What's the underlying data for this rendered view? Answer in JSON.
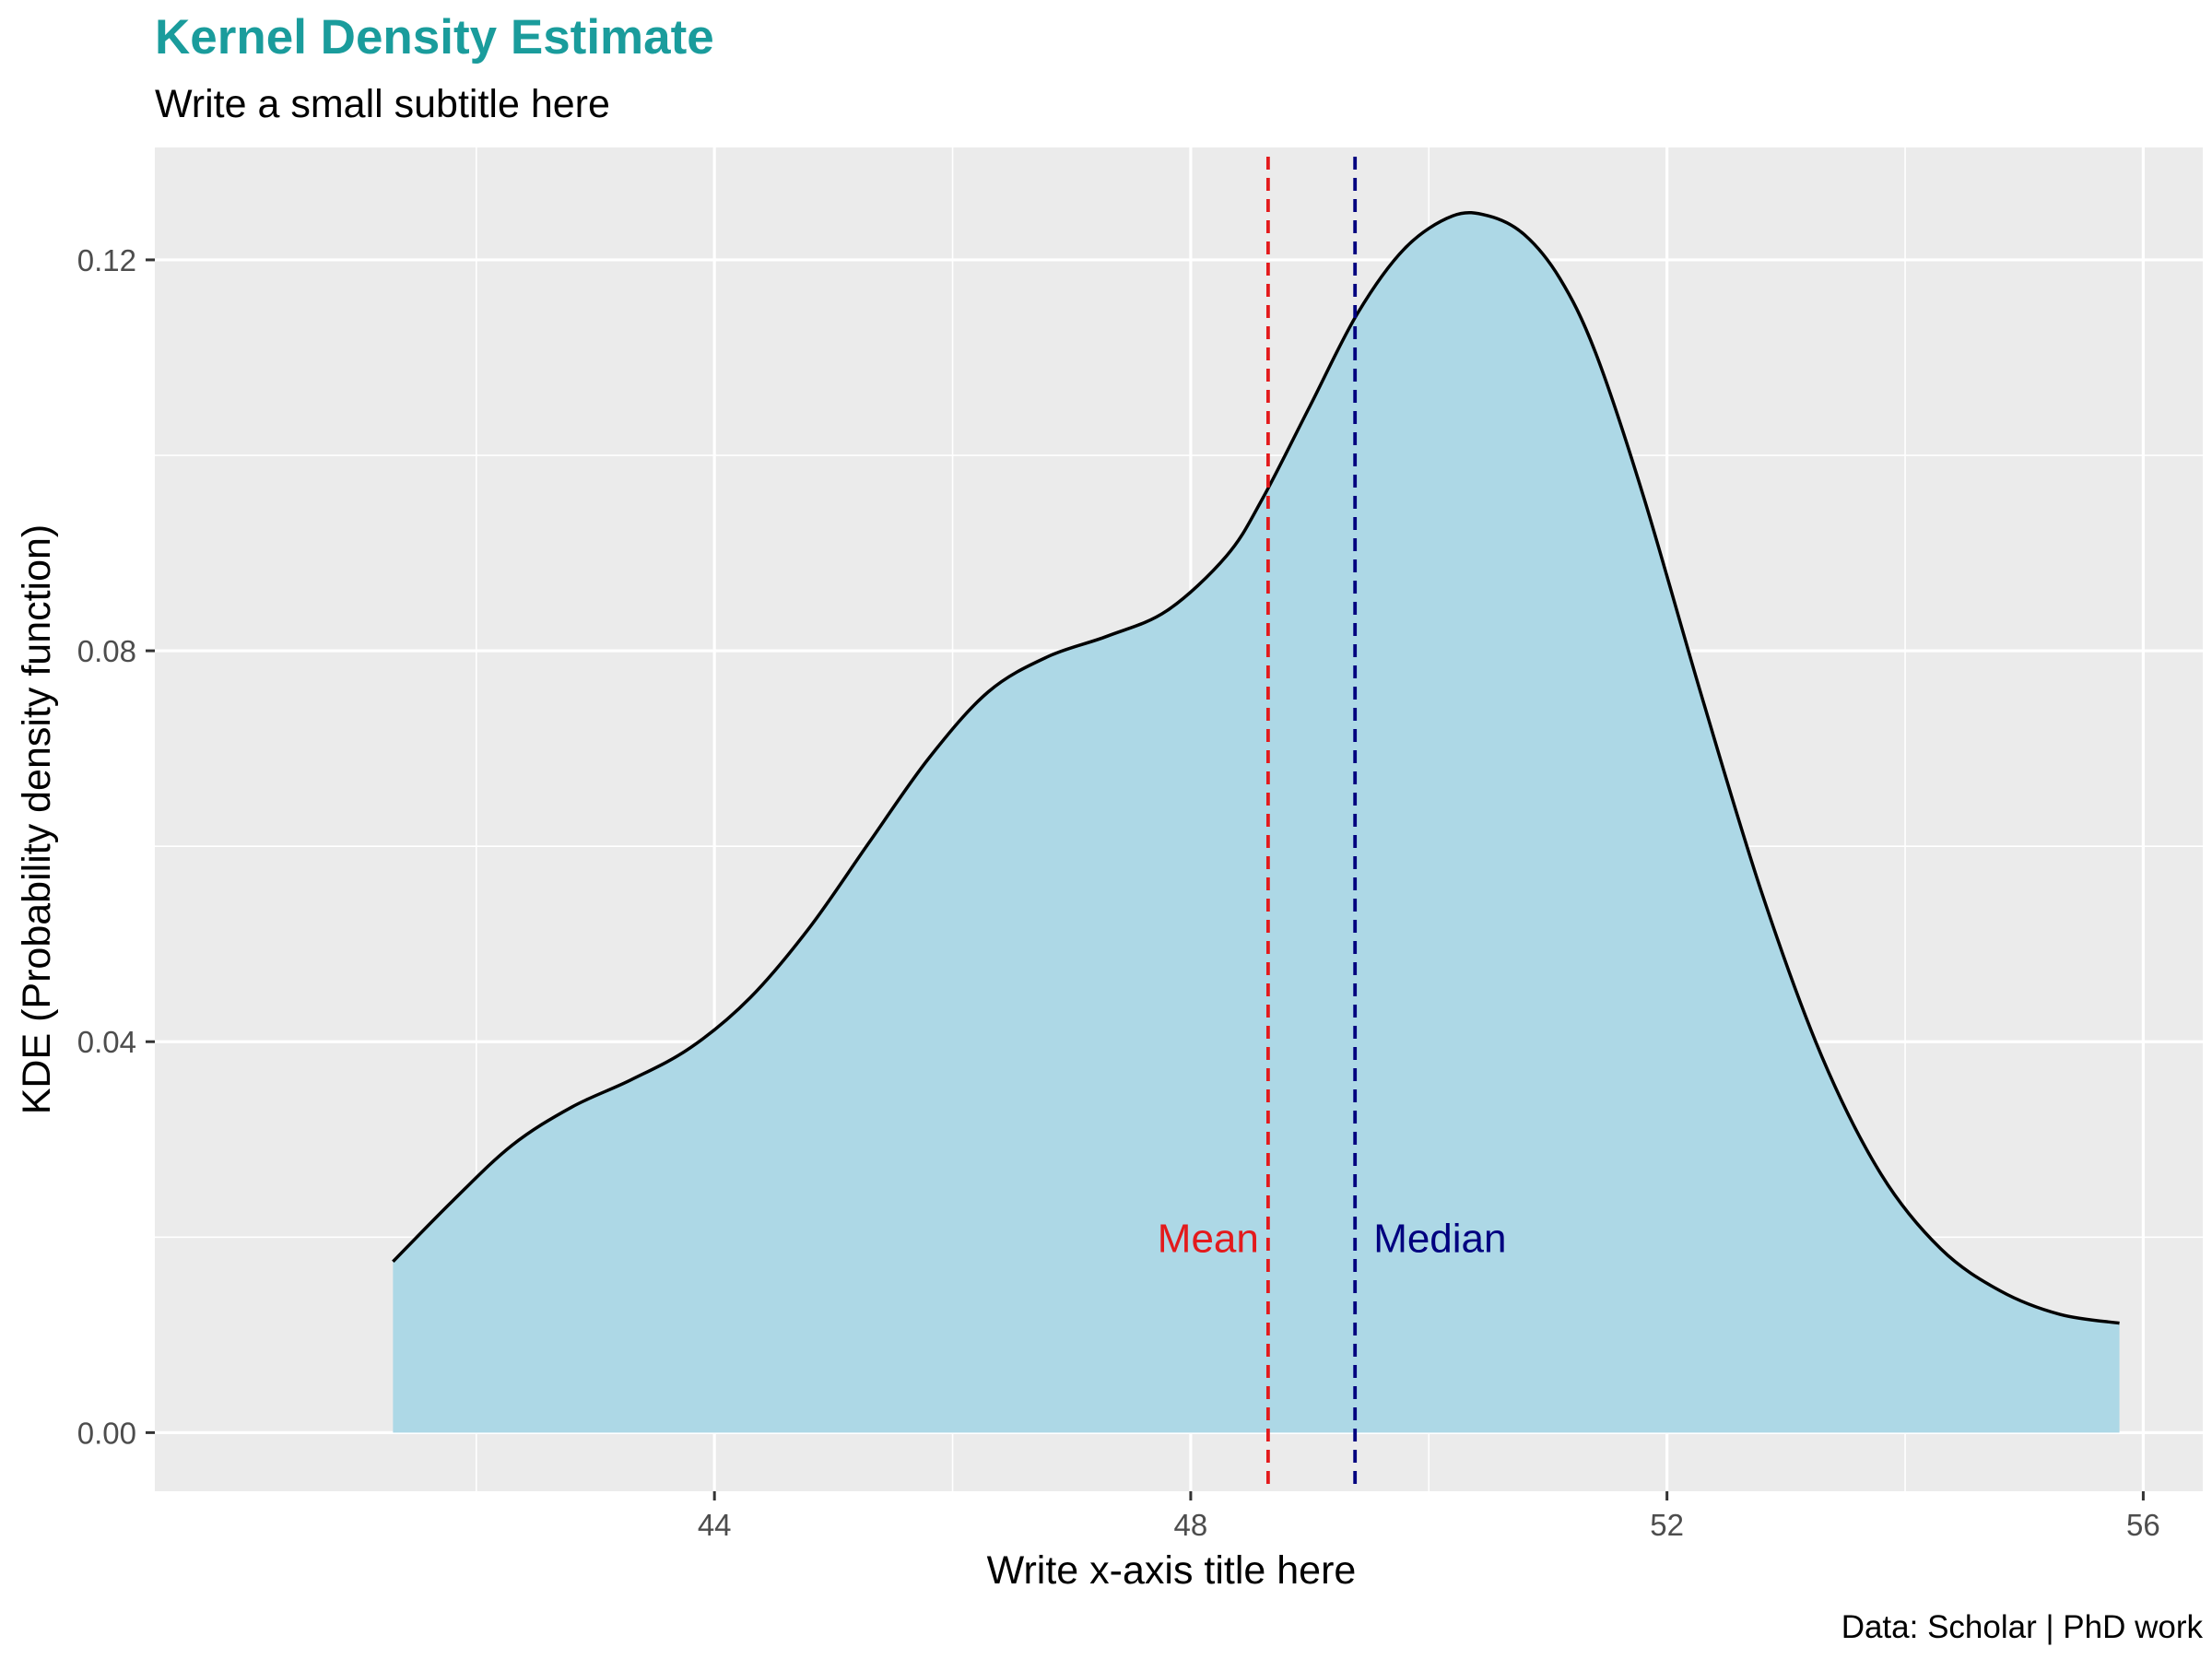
{
  "title": "Kernel Density Estimate",
  "subtitle": "Write a small subtitle here",
  "caption": "Data: Scholar | PhD work",
  "chart_data": {
    "type": "area",
    "xlabel": "Write x-axis title here",
    "ylabel": "KDE (Probability density function)",
    "xlim": [
      39.3,
      56.5
    ],
    "ylim": [
      -0.006,
      0.1315
    ],
    "x_ticks": [
      44,
      48,
      52,
      56
    ],
    "x_tick_labels": [
      "44",
      "48",
      "52",
      "56"
    ],
    "y_ticks": [
      0.0,
      0.04,
      0.08,
      0.12
    ],
    "y_tick_labels": [
      "0.00",
      "0.04",
      "0.08",
      "0.12"
    ],
    "grid": true,
    "series": [
      {
        "x": [
          41.3,
          41.8,
          42.3,
          42.8,
          43.3,
          43.8,
          44.3,
          44.8,
          45.3,
          45.8,
          46.3,
          46.8,
          47.3,
          47.8,
          48.3,
          48.6,
          49.0,
          49.4,
          49.8,
          50.2,
          50.5,
          50.8,
          51.1,
          51.4,
          51.8,
          52.3,
          52.8,
          53.3,
          53.8,
          54.3,
          54.8,
          55.3,
          55.8
        ],
        "y": [
          0.0175,
          0.0237,
          0.0294,
          0.0333,
          0.0361,
          0.0394,
          0.0445,
          0.0517,
          0.0604,
          0.069,
          0.0758,
          0.0794,
          0.0815,
          0.0841,
          0.0897,
          0.0955,
          0.105,
          0.1145,
          0.1212,
          0.1245,
          0.1245,
          0.1226,
          0.1181,
          0.1105,
          0.0959,
          0.075,
          0.0551,
          0.0385,
          0.0264,
          0.0188,
          0.0145,
          0.0121,
          0.0112
        ]
      }
    ],
    "vlines": [
      {
        "label": "Mean",
        "x": 48.65,
        "color": "#e31a1c",
        "label_side": "left"
      },
      {
        "label": "Median",
        "x": 49.38,
        "color": "#00007f",
        "label_side": "right"
      }
    ],
    "annotation_y": 0.0199,
    "fill_color": "#add8e6",
    "line_color": "#000000",
    "panel_color": "#ebebeb"
  }
}
